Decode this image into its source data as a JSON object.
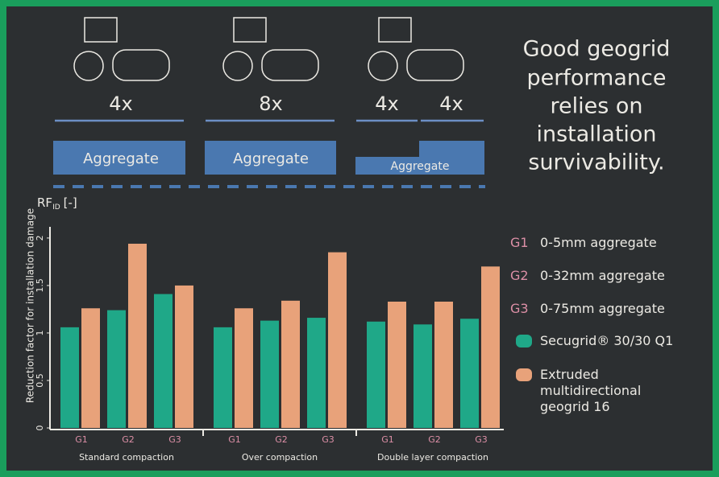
{
  "illustration": {
    "panels": [
      {
        "passes": [
          "4x"
        ],
        "layer": "Aggregate"
      },
      {
        "passes": [
          "8x"
        ],
        "layer": "Aggregate"
      },
      {
        "passes": [
          "4x",
          "4x"
        ],
        "layer": "Aggregate"
      }
    ],
    "headline": [
      "Good geogrid",
      "performance",
      "relies on",
      "installation",
      "survivability."
    ]
  },
  "chart_data": {
    "type": "grouped-bar",
    "y_axis_label": "Reduction factor for installation damage",
    "y_unit": {
      "symbol": "RF",
      "subscript": "ID",
      "unit": "[-]"
    },
    "groups": [
      {
        "name": "Standard compaction",
        "categories": [
          "G1",
          "G2",
          "G3"
        ]
      },
      {
        "name": "Over compaction",
        "categories": [
          "G1",
          "G2",
          "G3"
        ]
      },
      {
        "name": "Double layer compaction",
        "categories": [
          "G1",
          "G2",
          "G3"
        ]
      }
    ],
    "category_legend": [
      {
        "key": "G1",
        "label": "0-5mm aggregate"
      },
      {
        "key": "G2",
        "label": "0-32mm aggregate"
      },
      {
        "key": "G3",
        "label": "0-75mm aggregate"
      }
    ],
    "series": [
      {
        "name": "Secugrid® 30/30 Q1",
        "color": "#1fa888",
        "values": [
          1.06,
          1.24,
          1.41,
          1.06,
          1.13,
          1.16,
          1.12,
          1.09,
          1.15
        ]
      },
      {
        "name": "Extruded multidirectional geogrid 16",
        "color": "#e8a27a",
        "values": [
          1.26,
          1.94,
          1.5,
          1.26,
          1.34,
          1.85,
          1.33,
          1.33,
          1.7
        ]
      }
    ],
    "ylim": [
      0,
      2.05
    ],
    "yticks": [
      0,
      0.5,
      1,
      1.5,
      2
    ]
  }
}
